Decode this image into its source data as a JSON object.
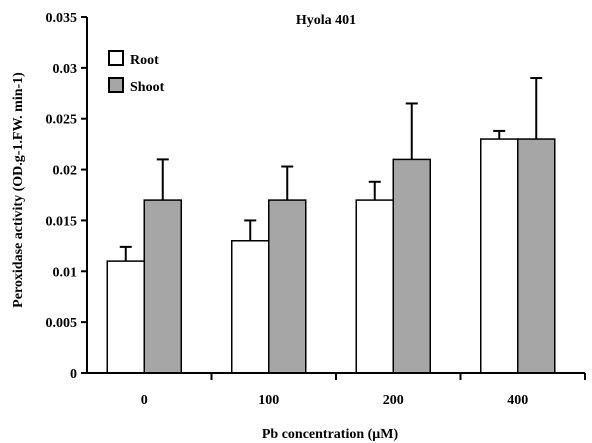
{
  "chart_data": {
    "type": "bar",
    "title": "Hyola 401",
    "xlabel": "Pb concentration (μM)",
    "ylabel": "Peroxidase activity (OD.g-1.FW. min-1)",
    "categories": [
      "0",
      "100",
      "200",
      "400"
    ],
    "ylim": [
      0,
      0.035
    ],
    "yticks": [
      0,
      0.005,
      0.01,
      0.015,
      0.02,
      0.025,
      0.03,
      0.035
    ],
    "ytick_labels": [
      "0",
      "0.005",
      "0.01",
      "0.015",
      "0.02",
      "0.025",
      "0.03",
      "0.035"
    ],
    "grid": false,
    "legend_position": "top-left",
    "series": [
      {
        "name": "Root",
        "values": [
          0.011,
          0.013,
          0.017,
          0.023
        ],
        "errors": [
          0.0014,
          0.002,
          0.0018,
          0.0008
        ],
        "color": "#ffffff"
      },
      {
        "name": "Shoot",
        "values": [
          0.017,
          0.017,
          0.021,
          0.023
        ],
        "errors": [
          0.004,
          0.0033,
          0.0055,
          0.006
        ],
        "color": "#a6a6a6"
      }
    ]
  }
}
